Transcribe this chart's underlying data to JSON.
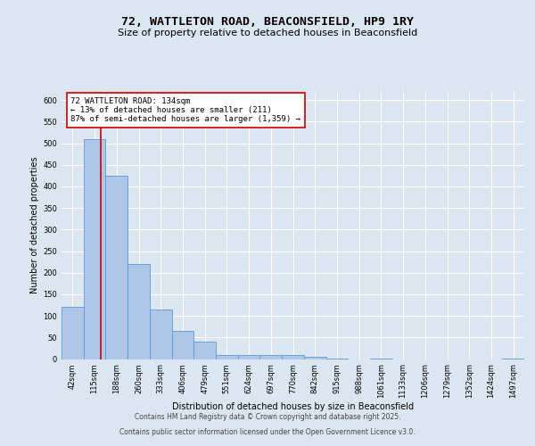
{
  "title": "72, WATTLETON ROAD, BEACONSFIELD, HP9 1RY",
  "subtitle": "Size of property relative to detached houses in Beaconsfield",
  "xlabel": "Distribution of detached houses by size in Beaconsfield",
  "ylabel": "Number of detached properties",
  "bin_labels": [
    "42sqm",
    "115sqm",
    "188sqm",
    "260sqm",
    "333sqm",
    "406sqm",
    "479sqm",
    "551sqm",
    "624sqm",
    "697sqm",
    "770sqm",
    "842sqm",
    "915sqm",
    "988sqm",
    "1061sqm",
    "1133sqm",
    "1206sqm",
    "1279sqm",
    "1352sqm",
    "1424sqm",
    "1497sqm"
  ],
  "bar_heights": [
    120,
    510,
    425,
    220,
    115,
    65,
    40,
    10,
    10,
    10,
    10,
    5,
    2,
    0,
    2,
    0,
    0,
    0,
    0,
    0,
    2
  ],
  "bar_color": "#aec6e8",
  "bar_edge_color": "#5b9bd5",
  "annotation_text": "72 WATTLETON ROAD: 134sqm\n← 13% of detached houses are smaller (211)\n87% of semi-detached houses are larger (1,359) →",
  "annotation_box_color": "#ffffff",
  "annotation_box_edge_color": "#cc0000",
  "ylim": [
    0,
    620
  ],
  "yticks": [
    0,
    50,
    100,
    150,
    200,
    250,
    300,
    350,
    400,
    450,
    500,
    550,
    600
  ],
  "footer_line1": "Contains HM Land Registry data © Crown copyright and database right 2025.",
  "footer_line2": "Contains public sector information licensed under the Open Government Licence v3.0.",
  "bg_color": "#dce6f1",
  "plot_bg_color": "#dce6f1",
  "grid_color": "#c5d5e8",
  "title_fontsize": 9.5,
  "subtitle_fontsize": 8,
  "label_fontsize": 7,
  "tick_fontsize": 6,
  "annot_fontsize": 6.5,
  "footer_fontsize": 5.5
}
